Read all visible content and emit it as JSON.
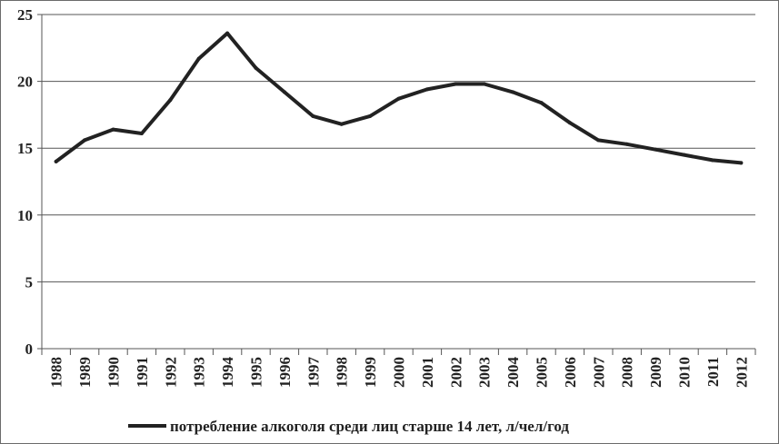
{
  "chart_data": {
    "type": "line",
    "title": "",
    "xlabel": "",
    "ylabel": "",
    "x": [
      "1988",
      "1989",
      "1990",
      "1991",
      "1992",
      "1993",
      "1994",
      "1995",
      "1996",
      "1997",
      "1998",
      "1999",
      "2000",
      "2001",
      "2002",
      "2003",
      "2004",
      "2005",
      "2006",
      "2007",
      "2008",
      "2009",
      "2010",
      "2011",
      "2012"
    ],
    "ylim": [
      0,
      25
    ],
    "yticks": [
      0,
      5,
      10,
      15,
      20,
      25
    ],
    "grid": true,
    "legend_position": "bottom",
    "series": [
      {
        "name": "потребление алкоголя среди лиц старше 14 лет, л/чел/год",
        "color": "#222222",
        "values": [
          14.0,
          15.6,
          16.4,
          16.1,
          18.6,
          21.7,
          23.6,
          21.0,
          19.2,
          17.4,
          16.8,
          17.4,
          18.7,
          19.4,
          19.8,
          19.8,
          19.2,
          18.4,
          16.9,
          15.6,
          15.3,
          14.9,
          14.5,
          14.1,
          13.9
        ]
      }
    ]
  }
}
